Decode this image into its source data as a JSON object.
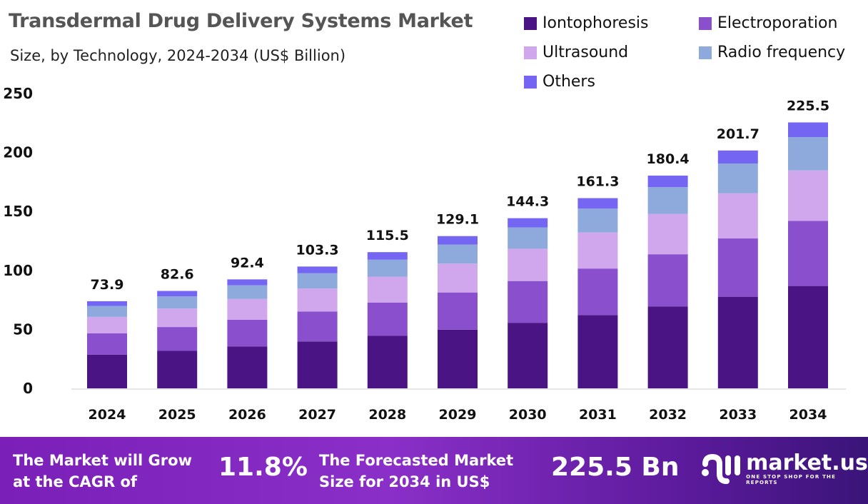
{
  "chart_data": {
    "type": "bar",
    "stacked": true,
    "title": "Transdermal Drug Delivery Systems Market",
    "subtitle": "Size, by Technology, 2024-2034 (US$ Billion)",
    "xlabel": "",
    "ylabel": "",
    "ylim": [
      0,
      250
    ],
    "yticks": [
      0,
      50,
      100,
      150,
      200,
      250
    ],
    "grid": false,
    "legend_position": "top-right",
    "categories": [
      "2024",
      "2025",
      "2026",
      "2027",
      "2028",
      "2029",
      "2030",
      "2031",
      "2032",
      "2033",
      "2034"
    ],
    "totals": [
      73.9,
      82.6,
      92.4,
      103.3,
      115.5,
      129.1,
      144.3,
      161.3,
      180.4,
      201.7,
      225.5
    ],
    "series": [
      {
        "name": "Iontophoresis",
        "color": "#4b1485",
        "values": [
          28.5,
          31.8,
          35.6,
          39.8,
          44.5,
          49.7,
          55.6,
          62.1,
          69.5,
          77.7,
          86.8
        ]
      },
      {
        "name": "Electroporation",
        "color": "#8a4fcc",
        "values": [
          18.1,
          20.2,
          22.6,
          25.3,
          28.3,
          31.6,
          35.4,
          39.5,
          44.2,
          49.4,
          55.2
        ]
      },
      {
        "name": "Ultrasound",
        "color": "#d0a6ec",
        "values": [
          14.0,
          15.7,
          17.6,
          19.6,
          21.9,
          24.5,
          27.4,
          30.6,
          34.3,
          38.3,
          42.8
        ]
      },
      {
        "name": "Radio frequency",
        "color": "#8eaadc",
        "values": [
          9.2,
          10.3,
          11.6,
          12.9,
          14.4,
          16.1,
          18.0,
          20.2,
          22.6,
          25.2,
          28.2
        ]
      },
      {
        "name": "Others",
        "color": "#7466f2",
        "values": [
          4.1,
          4.6,
          5.0,
          5.7,
          6.4,
          7.2,
          7.9,
          8.9,
          9.8,
          11.1,
          12.5
        ]
      }
    ]
  },
  "footer": {
    "cagr_label": "The Market will Grow at the CAGR of",
    "cagr_value": "11.8%",
    "forecast_label": "The Forecasted Market Size for 2034 in US$",
    "forecast_value": "225.5 Bn",
    "logo_text": "market.us",
    "logo_tagline": "ONE STOP SHOP FOR THE REPORTS"
  }
}
